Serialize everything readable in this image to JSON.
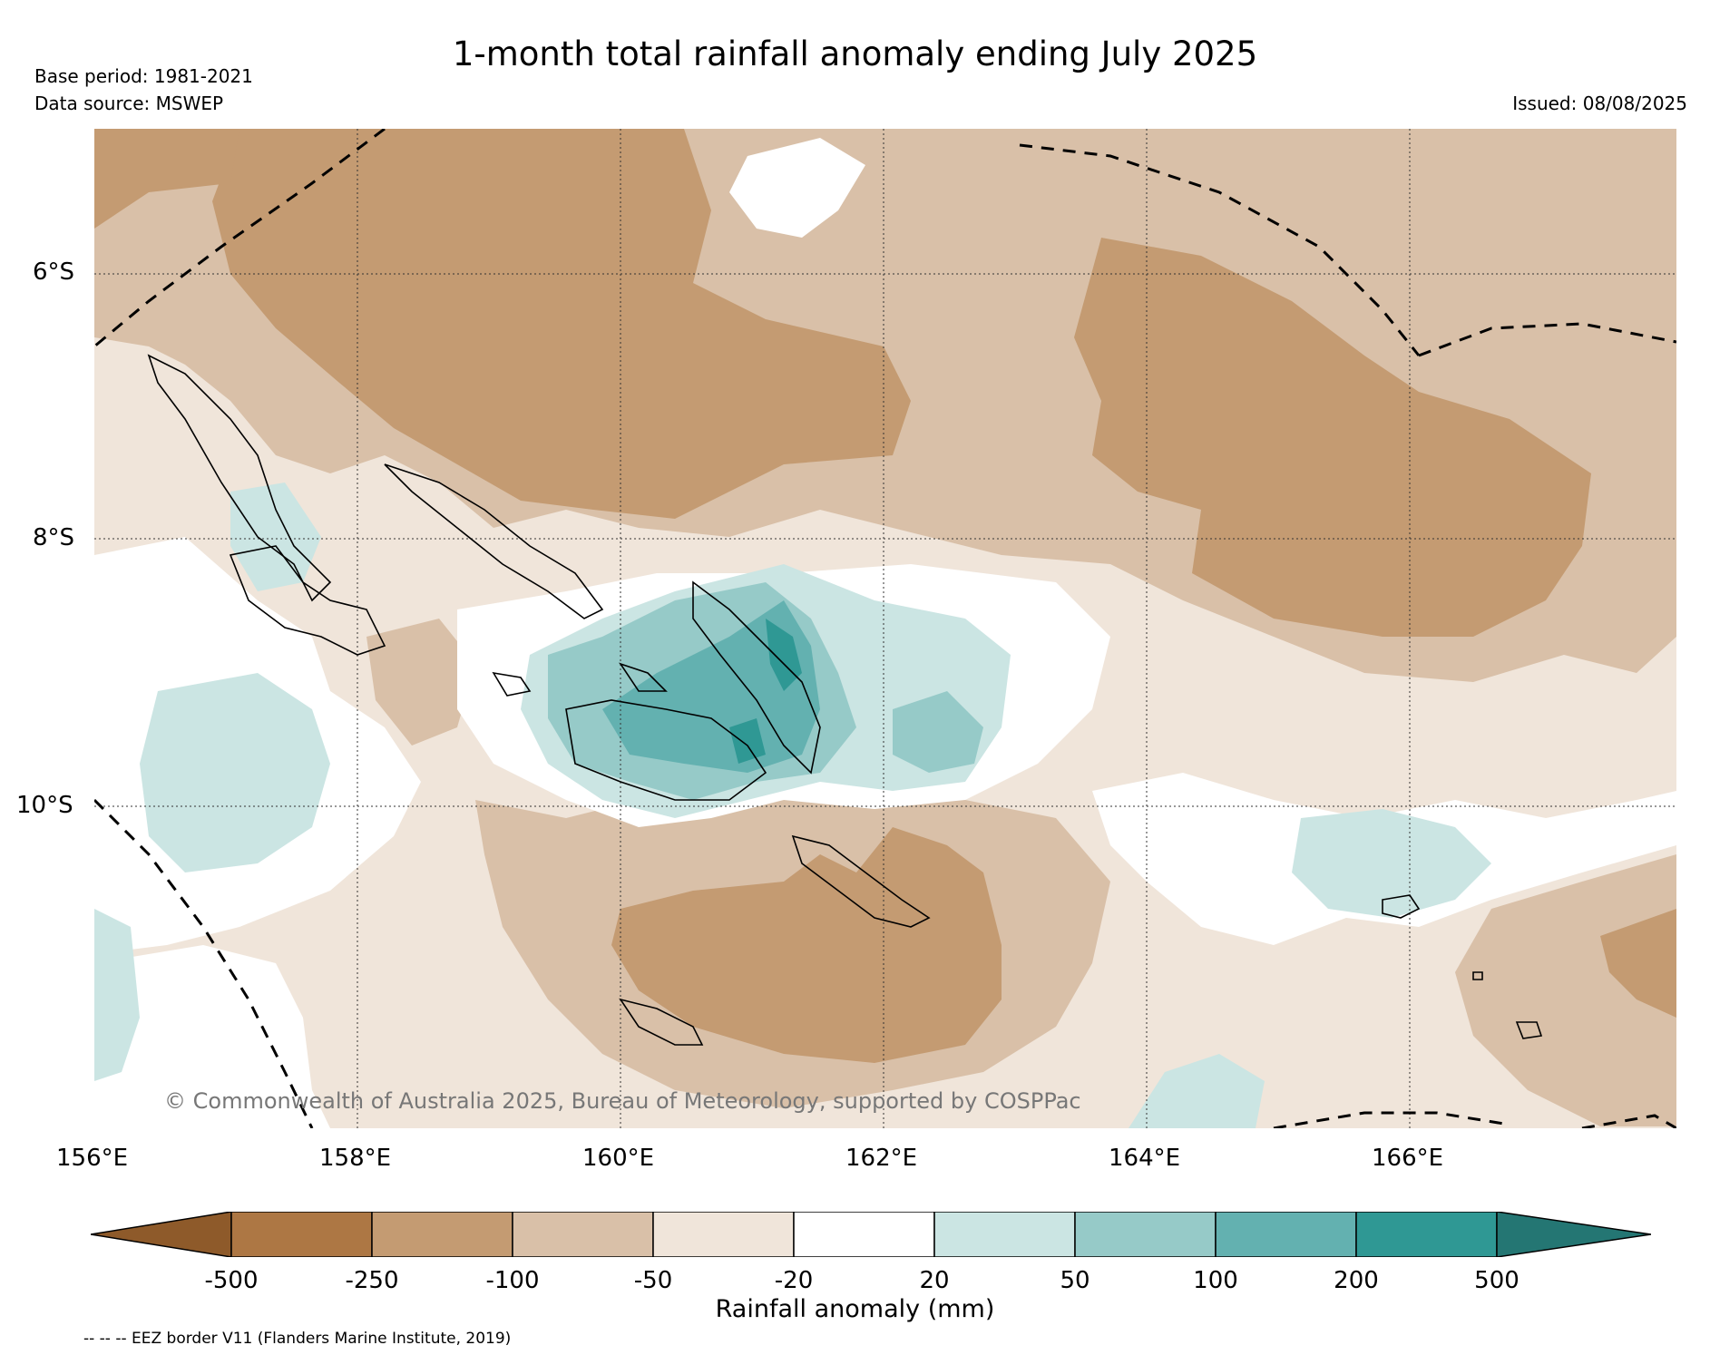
{
  "title": "1-month total rainfall anomaly ending July 2025",
  "base_period": "Base period: 1981-2021",
  "data_source": "Data source: MSWEP",
  "issued": "Issued: 08/08/2025",
  "copyright": "© Commonwealth of Australia 2025, Bureau of Meteorology, supported by COSPPac",
  "lat_labels": [
    "6°S",
    "8°S",
    "10°S"
  ],
  "lon_labels": [
    "156°E",
    "158°E",
    "160°E",
    "162°E",
    "164°E",
    "166°E"
  ],
  "colorbar": {
    "label": "Rainfall anomaly (mm)",
    "ticks": [
      "-500",
      "-250",
      "-100",
      "-50",
      "-20",
      "20",
      "50",
      "100",
      "200",
      "500"
    ],
    "colors": [
      "#8e5a2a",
      "#ad7744",
      "#c49b72",
      "#d9c0a8",
      "#f0e5da",
      "#ffffff",
      "#cbe5e3",
      "#96cac8",
      "#63b1b0",
      "#2f9894",
      "#247673"
    ]
  },
  "eez_note": "-- -- -- EEZ border V11 (Flanders Marine Institute, 2019)"
}
